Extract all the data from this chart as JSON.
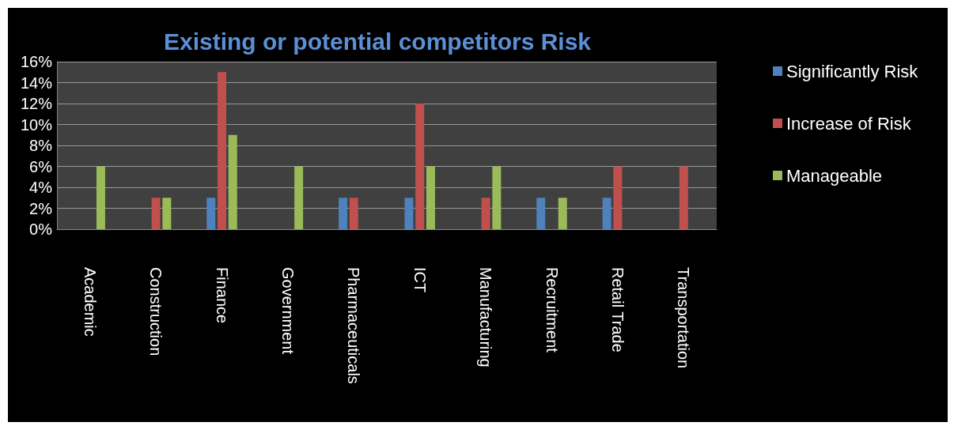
{
  "chart_data": {
    "type": "bar",
    "title": "Existing or potential competitors Risk",
    "categories": [
      "Academic",
      "Construction",
      "Finance",
      "Government",
      "Pharmaceuticals",
      "ICT",
      "Manufacturing",
      "Recruitment",
      "Retail Trade",
      "Transportation"
    ],
    "series": [
      {
        "name": "Significantly Risk",
        "color": "#4f81bd",
        "values": [
          0,
          0,
          3,
          0,
          3,
          3,
          0,
          3,
          3,
          0
        ]
      },
      {
        "name": "Increase of Risk",
        "color": "#c0504d",
        "values": [
          0,
          3,
          15,
          0,
          3,
          12,
          3,
          0,
          6,
          6
        ]
      },
      {
        "name": "Manageable",
        "color": "#9bbb59",
        "values": [
          6,
          3,
          9,
          6,
          0,
          6,
          6,
          3,
          0,
          0
        ]
      }
    ],
    "ylim": [
      0,
      16
    ],
    "yticks": [
      {
        "value": 0,
        "label": "0%"
      },
      {
        "value": 2,
        "label": "2%"
      },
      {
        "value": 4,
        "label": "4%"
      },
      {
        "value": 6,
        "label": "6%"
      },
      {
        "value": 8,
        "label": "8%"
      },
      {
        "value": 10,
        "label": "10%"
      },
      {
        "value": 12,
        "label": "12%"
      },
      {
        "value": 14,
        "label": "14%"
      },
      {
        "value": 16,
        "label": "16%"
      }
    ],
    "grid": "y",
    "legend": "right"
  }
}
